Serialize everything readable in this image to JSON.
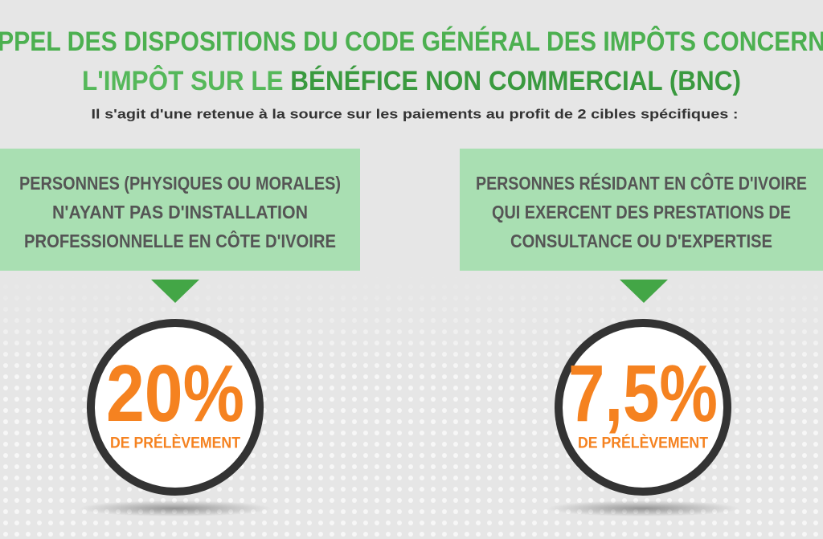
{
  "header": {
    "title_line1": "PPEL DES DISPOSITIONS DU CODE GÉNÉRAL DES IMPÔTS CONCERN",
    "title_line2_part1": "L'IMPÔT SUR LE ",
    "title_line2_part2": "BÉNÉFICE NON COMMERCIAL (BNC)",
    "subtitle": "Il s'agit d'une retenue à la source sur les paiements au profit de 2 cibles spécifiques :"
  },
  "targets": [
    {
      "lines": [
        "PERSONNES (PHYSIQUES OU MORALES)",
        "N'AYANT PAS D'INSTALLATION",
        "PROFESSIONNELLE EN CÔTE D'IVOIRE"
      ],
      "rate": "20%",
      "rate_caption": "DE PRÉLÈVEMENT"
    },
    {
      "lines": [
        "PERSONNES RÉSIDANT EN CÔTE D'IVOIRE",
        "QUI EXERCENT DES PRESTATIONS DE",
        "CONSULTANCE OU D'EXPERTISE"
      ],
      "rate": "7,5%",
      "rate_caption": "DE PRÉLÈVEMENT"
    }
  ]
}
